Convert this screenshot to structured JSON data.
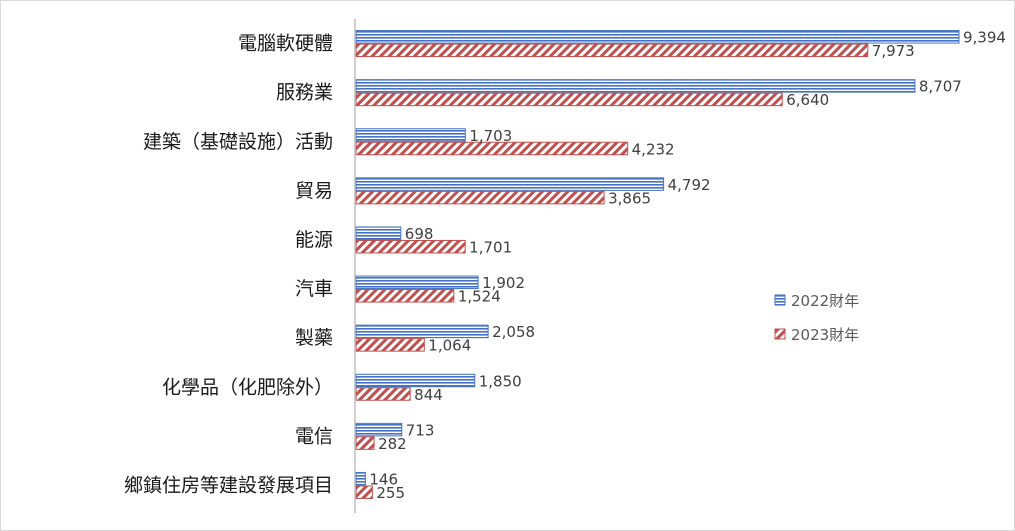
{
  "chart_data": {
    "type": "bar",
    "orientation": "horizontal",
    "categories": [
      "電腦軟硬體",
      "服務業",
      "建築（基礎設施）活動",
      "貿易",
      "能源",
      "汽車",
      "製藥",
      "化學品（化肥除外）",
      "電信",
      "鄉鎮住房等建設發展項目"
    ],
    "series": [
      {
        "name": "2022財年",
        "values": [
          9394,
          8707,
          1703,
          4792,
          698,
          1902,
          2058,
          1850,
          713,
          146
        ],
        "labels": [
          "9,394",
          "8,707",
          "1,703",
          "4,792",
          "698",
          "1,902",
          "2,058",
          "1,850",
          "713",
          "146"
        ],
        "color": "#4472c4",
        "pattern": "horizontal-stripes"
      },
      {
        "name": "2023財年",
        "values": [
          7973,
          6640,
          4232,
          3865,
          1701,
          1524,
          1064,
          844,
          282,
          255
        ],
        "labels": [
          "7,973",
          "6,640",
          "4,232",
          "3,865",
          "1,701",
          "1,524",
          "1,064",
          "844",
          "282",
          "255"
        ],
        "color": "#c0504d",
        "pattern": "diagonal-stripes"
      }
    ],
    "xlim": [
      0,
      9394
    ],
    "grid": false,
    "legend_position": "right"
  }
}
